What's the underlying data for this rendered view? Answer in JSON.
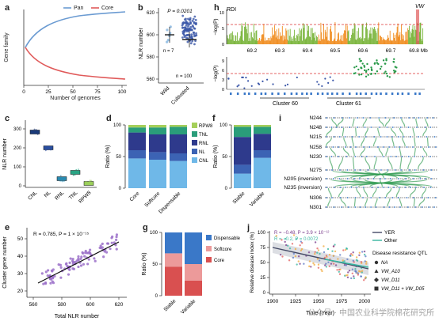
{
  "panels": {
    "a": {
      "letter": "a",
      "legend": [
        {
          "name": "Pan",
          "color": "#6b9bd2"
        },
        {
          "name": "Core",
          "color": "#e05a5a"
        }
      ],
      "xlabel": "Number of genomes",
      "ylabel": "Gene family",
      "xticks": [
        "0",
        "25",
        "50",
        "75",
        "100"
      ]
    },
    "b": {
      "letter": "b",
      "ylabel": "NLR number",
      "pvalue": "P = 0.0201",
      "n_wild": "n = 7",
      "n_cult": "n = 100",
      "categories": [
        "Wild",
        "Cultivated"
      ],
      "yticks": [
        "560",
        "580",
        "600",
        "620"
      ]
    },
    "c": {
      "letter": "c",
      "ylabel": "NLR number",
      "categories": [
        "CNL",
        "NL",
        "RNL",
        "TNL",
        "RPW8"
      ],
      "yticks": [
        "0",
        "100",
        "200",
        "300"
      ]
    },
    "d": {
      "letter": "d",
      "ylabel": "Ratio (%)",
      "categories": [
        "Core",
        "Softcore",
        "Dispensable"
      ],
      "yticks": [
        "0",
        "50",
        "100"
      ],
      "legend": [
        {
          "name": "RPW8",
          "color": "#a5cf5a"
        },
        {
          "name": "TNL",
          "color": "#2a9d7a"
        },
        {
          "name": "RNL",
          "color": "#2e3a8c"
        },
        {
          "name": "NL",
          "color": "#3c63b4"
        },
        {
          "name": "CNL",
          "color": "#6fb8e8"
        }
      ]
    },
    "e": {
      "letter": "e",
      "stat": "R = 0.785, P = 1 × 10⁻¹⁵",
      "xlabel": "Total NLR number",
      "ylabel": "Cluster gene number",
      "xticks": [
        "560",
        "580",
        "600",
        "620"
      ],
      "yticks": [
        "20",
        "30",
        "40",
        "50"
      ]
    },
    "f": {
      "letter": "f",
      "ylabel": "Ratio (%)",
      "categories": [
        "Stable",
        "Variable"
      ],
      "yticks": [
        "0",
        "50",
        "100"
      ]
    },
    "g": {
      "letter": "g",
      "ylabel": "Ratio (%)",
      "categories": [
        "Stable",
        "Variable"
      ],
      "yticks": [
        "0",
        "50",
        "100"
      ],
      "legend": [
        {
          "name": "Dispensable",
          "color": "#3a78c8"
        },
        {
          "name": "Softcore",
          "color": "#ec9a9a"
        },
        {
          "name": "Core",
          "color": "#d95050"
        }
      ]
    },
    "h": {
      "letter": "h",
      "title": "RDI",
      "marker": "VW",
      "xticks": [
        "69.2",
        "69.3",
        "69.4",
        "69.5",
        "69.6",
        "69.7",
        "69.8 Mb"
      ],
      "ylabel": "−log(P)",
      "yticks_top": [
        "0",
        "5",
        "10"
      ],
      "yticks_bottom": [
        "0",
        "3",
        "6",
        "9"
      ],
      "clusters": [
        "Cluster 60",
        "Cluster 61"
      ]
    },
    "i": {
      "letter": "i",
      "samples": [
        "N244",
        "N248",
        "N215",
        "N258",
        "N230",
        "N275",
        "N205 (inversion)",
        "N235 (inversion)",
        "N306",
        "N301"
      ]
    },
    "j": {
      "letter": "j",
      "stat1": "R = −0.48, P = 3.9 × 10⁻¹²",
      "stat2": "R = −0.2, P = 0.0072",
      "xlabel": "Time (Year)",
      "ylabel": "Relative disease index (%)",
      "xticks": [
        "1900",
        "1925",
        "1950",
        "1975",
        "2000"
      ],
      "yticks": [
        "0",
        "25",
        "50",
        "75",
        "100"
      ],
      "legend_lines": [
        {
          "name": "YER",
          "color": "#444a66"
        },
        {
          "name": "Other",
          "color": "#37b6a0"
        }
      ],
      "qtl_title": "Disease resistance QTL",
      "qtl_items": [
        "NA",
        "VW_A10",
        "VW_D11",
        "VW_D11 + VW_D05"
      ]
    }
  },
  "watermark": "公众号 · 中国农业科学院棉花研究所"
}
